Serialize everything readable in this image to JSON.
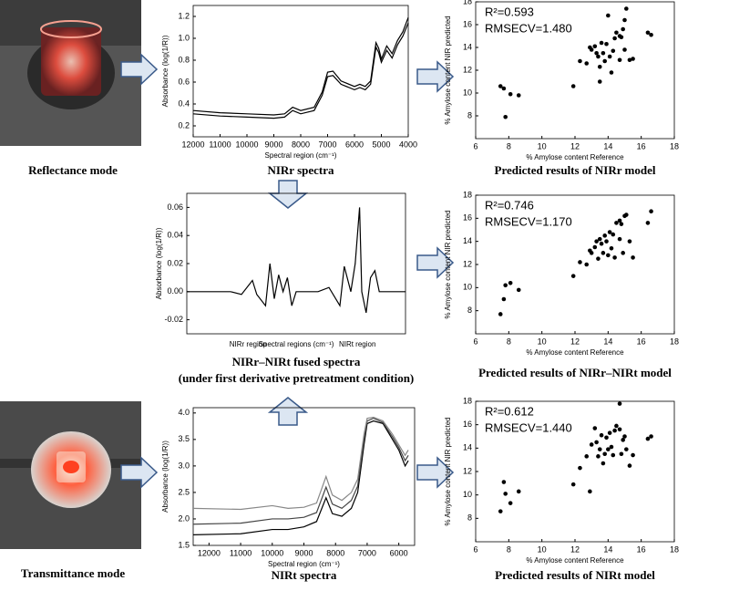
{
  "figure": {
    "reflectance_label": "Reflectance mode",
    "transmittance_label": "Transmittance mode"
  },
  "chart_data": [
    {
      "type": "line",
      "caption": "NIRr spectra",
      "xlabel": "Spectral region (cm⁻¹)",
      "ylabel": "Absorbance (log(1/R))",
      "xlim": [
        12000,
        4000
      ],
      "ylim": [
        0.1,
        1.3
      ],
      "xticks": [
        12000,
        11000,
        10000,
        9000,
        8000,
        7000,
        6000,
        5000,
        4000
      ],
      "yticks": [
        0.2,
        0.4,
        0.6,
        0.8,
        {
          "value": 1,
          "label": "1.0"
        },
        1.2
      ],
      "series": [
        {
          "color": "#000000",
          "x": [
            12000,
            11000,
            10000,
            9000,
            8600,
            8300,
            8000,
            7500,
            7200,
            7000,
            6800,
            6500,
            6000,
            5800,
            5600,
            5400,
            5200,
            5100,
            5000,
            4800,
            4600,
            4400,
            4200,
            4000
          ],
          "values": [
            0.34,
            0.32,
            0.31,
            0.3,
            0.31,
            0.37,
            0.34,
            0.37,
            0.51,
            0.69,
            0.7,
            0.61,
            0.56,
            0.58,
            0.56,
            0.61,
            0.96,
            0.91,
            0.81,
            0.93,
            0.86,
            0.98,
            1.06,
            1.19
          ]
        },
        {
          "color": "#000000",
          "x": [
            12000,
            11000,
            10000,
            9000,
            8600,
            8300,
            8000,
            7500,
            7200,
            7000,
            6800,
            6500,
            6000,
            5800,
            5600,
            5400,
            5200,
            5100,
            5000,
            4800,
            4600,
            4400,
            4200,
            4000
          ],
          "values": [
            0.31,
            0.29,
            0.28,
            0.27,
            0.28,
            0.34,
            0.31,
            0.34,
            0.48,
            0.65,
            0.66,
            0.58,
            0.53,
            0.55,
            0.53,
            0.58,
            0.92,
            0.87,
            0.78,
            0.89,
            0.82,
            0.94,
            1.02,
            1.14
          ]
        }
      ]
    },
    {
      "type": "scatter",
      "caption": "Predicted results of NIRr model",
      "annotations": [
        "R²=0.593",
        "RMSECV=1.480"
      ],
      "xlabel": "% Amylose content Reference",
      "ylabel": "% Amylose content NIR predicted",
      "xlim": [
        6,
        18
      ],
      "ylim": [
        6,
        18
      ],
      "xticks": [
        6,
        8,
        10,
        12,
        14,
        16,
        18
      ],
      "yticks": [
        8,
        10,
        12,
        14,
        16,
        18
      ],
      "series": [
        {
          "color": "#000000",
          "x": [
            7.5,
            7.7,
            7.8,
            8.1,
            8.6,
            11.9,
            12.3,
            12.7,
            13.0,
            13.2,
            13.4,
            13.5,
            13.5,
            13.6,
            13.7,
            13.8,
            13.9,
            14.0,
            14.1,
            14.2,
            14.3,
            14.4,
            14.5,
            14.7,
            14.8,
            14.9,
            15.0,
            15.1,
            15.0,
            15.3,
            15.5,
            16.4,
            16.6,
            14.7,
            13.3,
            12.9
          ],
          "values": [
            10.6,
            10.4,
            7.9,
            9.9,
            9.8,
            10.6,
            12.8,
            12.6,
            13.8,
            14.1,
            13.2,
            12.3,
            11.0,
            14.4,
            13.5,
            12.8,
            14.3,
            16.8,
            13.2,
            11.8,
            13.7,
            14.8,
            15.3,
            12.9,
            14.9,
            15.6,
            16.4,
            17.4,
            13.8,
            12.9,
            13.0,
            15.3,
            15.1,
            15.0,
            13.5,
            14.0
          ]
        }
      ]
    },
    {
      "type": "line",
      "caption": "NIRr–NIRt fused spectra",
      "caption_note": "(under first derivative pretreatment condition)",
      "xlabel": "Spectral regions (cm⁻¹)",
      "ylabel": "Absorbance (log(1/R))",
      "region_labels": [
        "NIRr region",
        "NIRt region"
      ],
      "xlim": [
        0,
        100
      ],
      "ylim": [
        -0.03,
        0.07
      ],
      "yticks": [
        -0.02,
        {
          "value": 0,
          "label": "0.00"
        },
        0.02,
        0.04,
        0.06
      ],
      "series": [
        {
          "color": "#000000",
          "x": [
            0,
            20,
            25,
            30,
            32,
            36,
            38,
            40,
            42,
            44,
            46,
            48,
            50,
            60,
            65,
            70,
            72,
            75,
            77,
            79,
            80,
            82,
            84,
            86,
            88,
            100
          ],
          "values": [
            0,
            0,
            -0.002,
            0.008,
            -0.002,
            -0.01,
            0.02,
            -0.005,
            0.012,
            0,
            0.01,
            -0.01,
            0,
            0,
            0.003,
            -0.01,
            0.018,
            0,
            0.02,
            0.06,
            0,
            -0.015,
            0.01,
            0.015,
            0,
            0
          ]
        }
      ]
    },
    {
      "type": "scatter",
      "caption": "Predicted results of NIRr–NIRt model",
      "annotations": [
        "R²=0.746",
        "RMSECV=1.170"
      ],
      "xlabel": "% Amylose content Reference",
      "ylabel": "% Amylose content NIR predicted",
      "xlim": [
        6,
        18
      ],
      "ylim": [
        6,
        18
      ],
      "xticks": [
        6,
        8,
        10,
        12,
        14,
        16,
        18
      ],
      "yticks": [
        8,
        10,
        12,
        14,
        16,
        18
      ],
      "series": [
        {
          "color": "#000000",
          "x": [
            7.5,
            7.7,
            7.8,
            8.1,
            8.6,
            11.9,
            12.3,
            12.7,
            13.0,
            13.2,
            13.4,
            13.5,
            13.6,
            13.7,
            13.8,
            13.9,
            14.0,
            14.1,
            14.2,
            14.3,
            14.4,
            14.5,
            14.7,
            14.8,
            14.9,
            15.0,
            15.1,
            15.3,
            15.5,
            16.4,
            16.6,
            14.7,
            13.3,
            12.9
          ],
          "values": [
            7.7,
            9.0,
            10.2,
            10.4,
            9.8,
            11.0,
            12.2,
            12.0,
            13.0,
            13.5,
            12.5,
            14.2,
            13.8,
            13.0,
            14.5,
            14.0,
            12.8,
            14.8,
            13.4,
            14.6,
            12.6,
            15.6,
            14.2,
            15.5,
            13.0,
            16.2,
            16.3,
            14.0,
            12.6,
            15.6,
            16.6,
            15.8,
            14.0,
            13.2
          ]
        }
      ]
    },
    {
      "type": "line",
      "caption": "NIRt spectra",
      "xlabel": "Spectral region (cm⁻¹)",
      "ylabel": "Absorbance (log(1/R))",
      "xlim": [
        12500,
        5500
      ],
      "ylim": [
        1.5,
        4.1
      ],
      "xticks": [
        12000,
        11000,
        10000,
        9000,
        8000,
        7000,
        6000
      ],
      "yticks": [
        1.5,
        {
          "value": 2,
          "label": "2.0"
        },
        2.5,
        {
          "value": 3,
          "label": "3.0"
        },
        3.5,
        {
          "value": 4,
          "label": "4.0"
        }
      ],
      "series": [
        {
          "color": "#000000",
          "x": [
            12500,
            11000,
            10000,
            9500,
            9000,
            8600,
            8300,
            8100,
            7800,
            7500,
            7300,
            7100,
            7000,
            6800,
            6500,
            6200,
            6000,
            5800,
            5700
          ],
          "values": [
            1.7,
            1.72,
            1.8,
            1.8,
            1.85,
            1.95,
            2.4,
            2.1,
            2.05,
            2.2,
            2.5,
            3.4,
            3.8,
            3.85,
            3.8,
            3.5,
            3.3,
            3.0,
            3.1
          ]
        },
        {
          "color": "#444444",
          "x": [
            12500,
            11000,
            10000,
            9500,
            9000,
            8600,
            8300,
            8100,
            7800,
            7500,
            7300,
            7100,
            7000,
            6800,
            6500,
            6200,
            6000,
            5800,
            5700
          ],
          "values": [
            1.9,
            1.92,
            2.0,
            2.0,
            2.03,
            2.12,
            2.6,
            2.28,
            2.2,
            2.35,
            2.62,
            3.5,
            3.85,
            3.9,
            3.82,
            3.55,
            3.35,
            3.1,
            3.2
          ]
        },
        {
          "color": "#888888",
          "x": [
            12500,
            11000,
            10000,
            9500,
            9000,
            8600,
            8300,
            8100,
            7800,
            7500,
            7300,
            7100,
            7000,
            6800,
            6500,
            6200,
            6000,
            5800,
            5700
          ],
          "values": [
            2.2,
            2.18,
            2.25,
            2.2,
            2.22,
            2.3,
            2.8,
            2.45,
            2.35,
            2.5,
            2.75,
            3.6,
            3.9,
            3.92,
            3.85,
            3.6,
            3.4,
            3.2,
            3.3
          ]
        }
      ]
    },
    {
      "type": "scatter",
      "caption": "Predicted results of NIRt model",
      "annotations": [
        "R²=0.612",
        "RMSECV=1.440"
      ],
      "xlabel": "% Amylose content Reference",
      "ylabel": "% Amylose content NIR predicted",
      "xlim": [
        6,
        18
      ],
      "ylim": [
        6,
        18
      ],
      "xticks": [
        6,
        8,
        10,
        12,
        14,
        16,
        18
      ],
      "yticks": [
        8,
        10,
        12,
        14,
        16,
        18
      ],
      "series": [
        {
          "color": "#000000",
          "x": [
            7.5,
            7.7,
            7.8,
            8.1,
            8.6,
            11.9,
            12.3,
            12.7,
            13.0,
            13.2,
            13.4,
            13.5,
            13.6,
            13.7,
            13.8,
            13.9,
            14.0,
            14.1,
            14.2,
            14.3,
            14.4,
            14.5,
            14.7,
            14.8,
            14.9,
            15.0,
            15.1,
            15.3,
            15.5,
            16.4,
            16.6,
            14.7,
            13.3,
            12.9
          ],
          "values": [
            8.6,
            11.1,
            10.1,
            9.3,
            10.3,
            10.9,
            12.3,
            13.3,
            14.3,
            15.7,
            13.3,
            13.9,
            15.1,
            12.7,
            13.5,
            14.9,
            13.9,
            15.3,
            14.1,
            13.4,
            15.5,
            15.9,
            17.8,
            13.5,
            14.7,
            15.0,
            13.9,
            12.5,
            13.4,
            14.8,
            15.0,
            15.6,
            14.5,
            10.3
          ]
        }
      ]
    }
  ]
}
